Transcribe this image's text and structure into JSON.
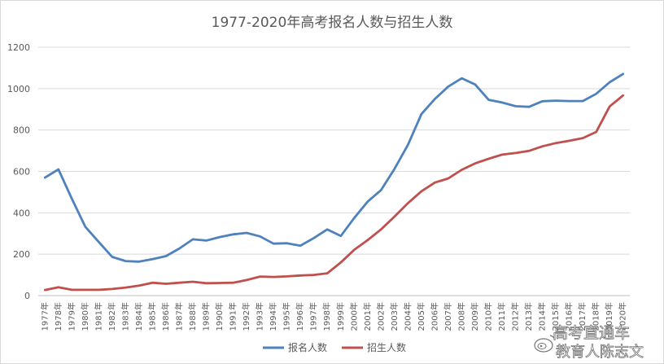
{
  "chart_data": {
    "type": "line",
    "title": "1977-2020年高考报名人数与招生人数",
    "ylim": [
      0,
      1200
    ],
    "yticks": [
      0,
      200,
      400,
      600,
      800,
      1000,
      1200
    ],
    "grid": true,
    "legend_position": "bottom",
    "categories": [
      "1977年",
      "1978年",
      "1979年",
      "1980年",
      "1981年",
      "1982年",
      "1983年",
      "1984年",
      "1985年",
      "1986年",
      "1987年",
      "1988年",
      "1989年",
      "1990年",
      "1991年",
      "1992年",
      "1993年",
      "1994年",
      "1995年",
      "1996年",
      "1997年",
      "1998年",
      "1999年",
      "2000年",
      "2001年",
      "2002年",
      "2003年",
      "2004年",
      "2005年",
      "2006年",
      "2007年",
      "2008年",
      "2009年",
      "2010年",
      "2011年",
      "2012年",
      "2013年",
      "2014年",
      "2015年",
      "2016年",
      "2017年",
      "2018年",
      "2019年",
      "2020年"
    ],
    "series": [
      {
        "name": "报名人数",
        "color": "#4f81bd",
        "values": [
          570,
          610,
          468,
          333,
          259,
          187,
          167,
          164,
          176,
          191,
          228,
          272,
          266,
          283,
          296,
          303,
          286,
          251,
          253,
          241,
          278,
          320,
          288,
          375,
          454,
          510,
          613,
          729,
          877,
          950,
          1010,
          1050,
          1020,
          946,
          933,
          915,
          912,
          939,
          942,
          940,
          940,
          975,
          1031,
          1071
        ]
      },
      {
        "name": "招生人数",
        "color": "#c0504d",
        "values": [
          27,
          40,
          28,
          28,
          28,
          32,
          39,
          48,
          62,
          57,
          62,
          67,
          60,
          61,
          62,
          75,
          92,
          90,
          93,
          97,
          100,
          108,
          160,
          221,
          268,
          320,
          382,
          447,
          504,
          546,
          566,
          608,
          639,
          661,
          681,
          689,
          699,
          721,
          737,
          748,
          761,
          791,
          914,
          967
        ]
      }
    ]
  },
  "watermark": {
    "line1": "高考直通车",
    "line2": "教育人陈志文",
    "logo_icon": "weibo-logo-icon"
  }
}
